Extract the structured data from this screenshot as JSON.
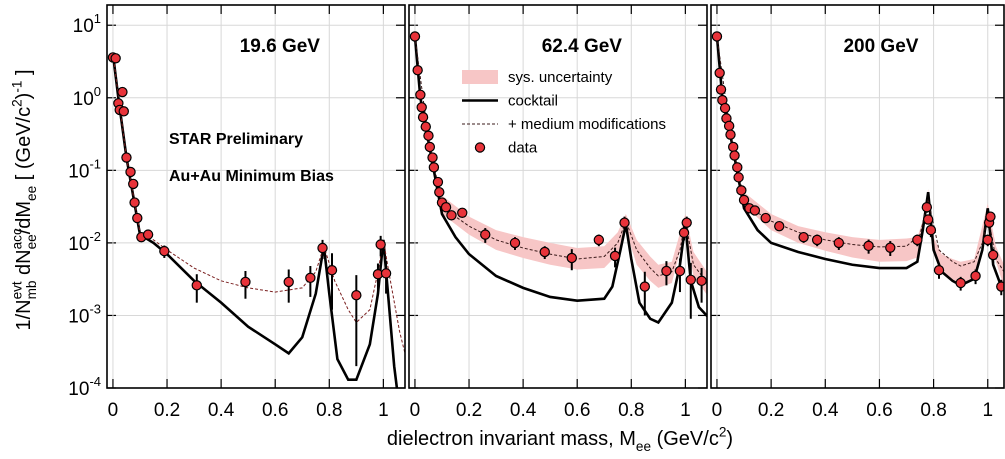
{
  "figure": {
    "ylabel_parts": [
      {
        "text": "1/N",
        "pos": "base"
      },
      {
        "text": "evt",
        "pos": "sup"
      },
      {
        "text": "mb",
        "pos": "sub"
      },
      {
        "text": " dN",
        "pos": "base"
      },
      {
        "text": "acc.",
        "pos": "sup"
      },
      {
        "text": "ee",
        "pos": "sub"
      },
      {
        "text": "/dM",
        "pos": "base"
      },
      {
        "text": "ee",
        "pos": "sub"
      },
      {
        "text": " [ (GeV/c",
        "pos": "base"
      },
      {
        "text": "2",
        "pos": "sup"
      },
      {
        "text": ")",
        "pos": "base"
      },
      {
        "text": "-1",
        "pos": "sup"
      },
      {
        "text": " ]",
        "pos": "base"
      }
    ],
    "xlabel_parts": [
      {
        "text": "dielectron invariant mass, M",
        "pos": "base"
      },
      {
        "text": "ee",
        "pos": "sub"
      },
      {
        "text": " (GeV/c",
        "pos": "base"
      },
      {
        "text": "2",
        "pos": "sup"
      },
      {
        "text": ")",
        "pos": "base"
      }
    ]
  },
  "chart_data": [
    {
      "type": "line",
      "title": "19.6 GeV",
      "log_y": true,
      "grid": true,
      "annotations": [
        "STAR Preliminary",
        "Au+Au Minimum Bias"
      ],
      "xlim": [
        -0.022,
        1.08
      ],
      "ylim": [
        0.0001,
        19
      ],
      "xticks": [
        0,
        0.2,
        0.4,
        0.6,
        0.8,
        1
      ],
      "yticks": [
        {
          "value": 10,
          "label": "10",
          "exp": "1"
        },
        {
          "value": 1,
          "label": "10",
          "exp": "0"
        },
        {
          "value": 0.1,
          "label": "10",
          "exp": "-1"
        },
        {
          "value": 0.01,
          "label": "10",
          "exp": "-2"
        },
        {
          "value": 0.001,
          "label": "10",
          "exp": "-3"
        },
        {
          "value": 0.0001,
          "label": "10",
          "exp": "-4"
        }
      ],
      "series": [
        {
          "style": "line",
          "color": "#000000",
          "x": [
            0,
            0.02,
            0.05,
            0.1,
            0.15,
            0.2,
            0.3,
            0.4,
            0.5,
            0.6,
            0.65,
            0.7,
            0.75,
            0.78,
            0.8,
            0.83,
            0.87,
            0.9,
            0.95,
            0.98,
            1.0,
            1.02,
            1.04,
            1.05
          ],
          "values": [
            4,
            1.0,
            0.15,
            0.013,
            0.01,
            0.007,
            0.003,
            0.0015,
            0.0007,
            0.0004,
            0.0003,
            0.0005,
            0.002,
            0.009,
            0.002,
            0.00025,
            0.00013,
            0.00013,
            0.0004,
            0.002,
            0.011,
            0.0015,
            0.0002,
            0.0001
          ]
        },
        {
          "style": "dashed",
          "color": "#7a1f1f",
          "x": [
            0,
            0.05,
            0.1,
            0.15,
            0.2,
            0.3,
            0.4,
            0.5,
            0.6,
            0.7,
            0.75,
            0.78,
            0.82,
            0.87,
            0.9,
            0.95,
            0.98,
            1.0,
            1.02,
            1.06,
            1.08
          ],
          "values": [
            4,
            0.15,
            0.014,
            0.011,
            0.008,
            0.0045,
            0.003,
            0.0024,
            0.0021,
            0.0024,
            0.004,
            0.009,
            0.003,
            0.0012,
            0.0008,
            0.0012,
            0.004,
            0.011,
            0.004,
            0.0006,
            0.0003
          ]
        },
        {
          "style": "points",
          "color": "#e8333a",
          "x": [
            0,
            0.01,
            0.02,
            0.025,
            0.035,
            0.04,
            0.05,
            0.065,
            0.075,
            0.08,
            0.09,
            0.105,
            0.13,
            0.19,
            0.31,
            0.49,
            0.65,
            0.73,
            0.775,
            0.81,
            0.9,
            0.98,
            0.99,
            1.01
          ],
          "values": [
            3.6,
            3.5,
            0.84,
            0.68,
            1.2,
            0.65,
            0.15,
            0.095,
            0.065,
            0.036,
            0.022,
            0.012,
            0.013,
            0.0077,
            0.0026,
            0.0029,
            0.0029,
            0.0033,
            0.0085,
            0.0042,
            0.0019,
            0.0037,
            0.0095,
            0.0038
          ],
          "errors": [
            0,
            0,
            0,
            0,
            0,
            0,
            0,
            0,
            0,
            0,
            0,
            0,
            0,
            0.0015,
            0.0011,
            0.0012,
            0.0014,
            0.0015,
            0.0025,
            0.003,
            0.0017,
            0.0015,
            0.003,
            0.0018
          ]
        }
      ]
    },
    {
      "type": "line",
      "title": "62.4 GeV",
      "log_y": true,
      "grid": true,
      "legend": "upper right",
      "xlim": [
        -0.022,
        1.08
      ],
      "ylim": [
        0.0001,
        19
      ],
      "xticks": [
        0,
        0.2,
        0.4,
        0.6,
        0.8,
        1
      ],
      "yticks": [
        10,
        1,
        0.1,
        0.01,
        0.001,
        0.0001
      ],
      "series": [
        {
          "name": "sys. uncertainty",
          "style": "band",
          "color": "#f7c6c6",
          "x": [
            0.1,
            0.2,
            0.3,
            0.4,
            0.5,
            0.6,
            0.7,
            0.75,
            0.78,
            0.82,
            0.87,
            0.9,
            0.95,
            1.0,
            1.03,
            1.09
          ],
          "lower": [
            0.025,
            0.013,
            0.008,
            0.0062,
            0.005,
            0.0043,
            0.0045,
            0.007,
            0.015,
            0.005,
            0.003,
            0.0024,
            0.0028,
            0.015,
            0.0035,
            0.0017
          ],
          "upper": [
            0.045,
            0.023,
            0.015,
            0.012,
            0.01,
            0.0085,
            0.009,
            0.014,
            0.025,
            0.011,
            0.0065,
            0.005,
            0.0055,
            0.025,
            0.0075,
            0.0035
          ]
        },
        {
          "name": "cocktail",
          "style": "line",
          "color": "#000000",
          "x": [
            0,
            0.02,
            0.05,
            0.1,
            0.15,
            0.2,
            0.3,
            0.4,
            0.5,
            0.6,
            0.7,
            0.73,
            0.76,
            0.78,
            0.8,
            0.83,
            0.87,
            0.9,
            0.95,
            0.98,
            1.0,
            1.02,
            1.05,
            1.09
          ],
          "values": [
            7,
            1.0,
            0.25,
            0.025,
            0.012,
            0.007,
            0.0035,
            0.0024,
            0.0018,
            0.0016,
            0.0017,
            0.0025,
            0.008,
            0.018,
            0.006,
            0.0015,
            0.0009,
            0.0008,
            0.0015,
            0.005,
            0.018,
            0.003,
            0.0013,
            0.0009
          ]
        },
        {
          "name": "+ medium modifications",
          "style": "dashed",
          "color": "#3a1a1a",
          "x": [
            0,
            0.05,
            0.1,
            0.15,
            0.2,
            0.3,
            0.4,
            0.5,
            0.6,
            0.7,
            0.75,
            0.78,
            0.82,
            0.87,
            0.9,
            0.95,
            0.98,
            1.0,
            1.03,
            1.09
          ],
          "values": [
            7,
            0.27,
            0.035,
            0.023,
            0.017,
            0.011,
            0.0085,
            0.007,
            0.006,
            0.0065,
            0.01,
            0.02,
            0.008,
            0.0045,
            0.0035,
            0.004,
            0.008,
            0.02,
            0.005,
            0.0025
          ]
        },
        {
          "name": "data",
          "style": "points",
          "color": "#e8333a",
          "x": [
            0,
            0.01,
            0.02,
            0.025,
            0.03,
            0.04,
            0.05,
            0.055,
            0.065,
            0.07,
            0.085,
            0.09,
            0.1,
            0.115,
            0.135,
            0.175,
            0.26,
            0.37,
            0.48,
            0.58,
            0.68,
            0.74,
            0.775,
            0.85,
            0.93,
            0.98,
            0.995,
            1.005,
            1.02,
            1.06
          ],
          "values": [
            7,
            2.4,
            1.1,
            0.74,
            0.54,
            0.4,
            0.3,
            0.21,
            0.15,
            0.11,
            0.069,
            0.05,
            0.036,
            0.031,
            0.024,
            0.026,
            0.013,
            0.01,
            0.0075,
            0.0062,
            0.011,
            0.0066,
            0.019,
            0.0025,
            0.0041,
            0.0041,
            0.0138,
            0.019,
            0.0031,
            0.003
          ],
          "errors": [
            0,
            0,
            0,
            0,
            0,
            0,
            0,
            0,
            0,
            0,
            0,
            0,
            0,
            0,
            0,
            0,
            0.003,
            0.002,
            0.0015,
            0.002,
            0.002,
            0.002,
            0.004,
            0.0015,
            0.0015,
            0.002,
            0.003,
            0.004,
            0.0022,
            0.0015
          ]
        }
      ]
    },
    {
      "type": "line",
      "title": "200 GeV",
      "log_y": true,
      "grid": true,
      "xlim": [
        -0.022,
        1.06
      ],
      "ylim": [
        0.0001,
        19
      ],
      "xticks": [
        0,
        0.2,
        0.4,
        0.6,
        0.8,
        1
      ],
      "yticks": [
        10,
        1,
        0.1,
        0.01,
        0.001,
        0.0001
      ],
      "series": [
        {
          "style": "band",
          "color": "#f7c6c6",
          "x": [
            0.1,
            0.2,
            0.3,
            0.4,
            0.5,
            0.6,
            0.7,
            0.74,
            0.76,
            0.78,
            0.8,
            0.83,
            0.87,
            0.9,
            0.95,
            1.0,
            1.03,
            1.06
          ],
          "lower": [
            0.033,
            0.015,
            0.01,
            0.0078,
            0.0063,
            0.0055,
            0.0056,
            0.0063,
            0.014,
            0.04,
            0.007,
            0.0038,
            0.003,
            0.0027,
            0.0033,
            0.025,
            0.0055,
            0.0025
          ],
          "upper": [
            0.05,
            0.025,
            0.017,
            0.014,
            0.012,
            0.011,
            0.0115,
            0.012,
            0.02,
            0.055,
            0.012,
            0.007,
            0.006,
            0.0055,
            0.006,
            0.035,
            0.009,
            0.005
          ]
        },
        {
          "style": "line",
          "color": "#000000",
          "x": [
            0,
            0.02,
            0.05,
            0.1,
            0.15,
            0.2,
            0.3,
            0.4,
            0.5,
            0.6,
            0.7,
            0.74,
            0.76,
            0.78,
            0.8,
            0.83,
            0.87,
            0.9,
            0.95,
            0.98,
            1.0,
            1.02,
            1.05
          ],
          "values": [
            7,
            1.0,
            0.3,
            0.03,
            0.015,
            0.01,
            0.0075,
            0.006,
            0.005,
            0.0045,
            0.0045,
            0.0055,
            0.015,
            0.05,
            0.008,
            0.004,
            0.003,
            0.0026,
            0.0032,
            0.008,
            0.03,
            0.005,
            0.0025
          ]
        },
        {
          "style": "dashed",
          "color": "#3a1a1a",
          "x": [
            0,
            0.05,
            0.1,
            0.15,
            0.2,
            0.3,
            0.4,
            0.5,
            0.6,
            0.7,
            0.75,
            0.78,
            0.82,
            0.87,
            0.9,
            0.95,
            0.98,
            1.0,
            1.03,
            1.06
          ],
          "values": [
            7,
            0.32,
            0.04,
            0.026,
            0.02,
            0.014,
            0.011,
            0.0095,
            0.0088,
            0.009,
            0.013,
            0.04,
            0.008,
            0.0055,
            0.0048,
            0.0055,
            0.01,
            0.025,
            0.006,
            0.004
          ]
        },
        {
          "style": "points",
          "color": "#e8333a",
          "x": [
            0,
            0.01,
            0.015,
            0.02,
            0.03,
            0.035,
            0.045,
            0.05,
            0.06,
            0.065,
            0.075,
            0.08,
            0.09,
            0.1,
            0.12,
            0.14,
            0.18,
            0.23,
            0.32,
            0.37,
            0.45,
            0.56,
            0.64,
            0.74,
            0.775,
            0.78,
            0.79,
            0.82,
            0.9,
            0.955,
            1.0,
            1.005,
            1.01,
            1.02,
            1.05
          ],
          "values": [
            7,
            2.2,
            1.3,
            0.93,
            0.72,
            0.52,
            0.41,
            0.31,
            0.21,
            0.16,
            0.11,
            0.08,
            0.053,
            0.039,
            0.03,
            0.028,
            0.022,
            0.017,
            0.012,
            0.011,
            0.01,
            0.0091,
            0.0086,
            0.011,
            0.031,
            0.021,
            0.015,
            0.0042,
            0.0028,
            0.0035,
            0.011,
            0.019,
            0.023,
            0.0068,
            0.0025
          ],
          "errors": [
            0,
            0,
            0,
            0,
            0,
            0,
            0,
            0,
            0,
            0,
            0,
            0,
            0,
            0,
            0,
            0,
            0,
            0.002,
            0.002,
            0.002,
            0.002,
            0.002,
            0.002,
            0.002,
            0.005,
            0.003,
            0.003,
            0.001,
            0.0006,
            0.0008,
            0.002,
            0.003,
            0.004,
            0.0015,
            0.0006
          ]
        }
      ]
    }
  ]
}
